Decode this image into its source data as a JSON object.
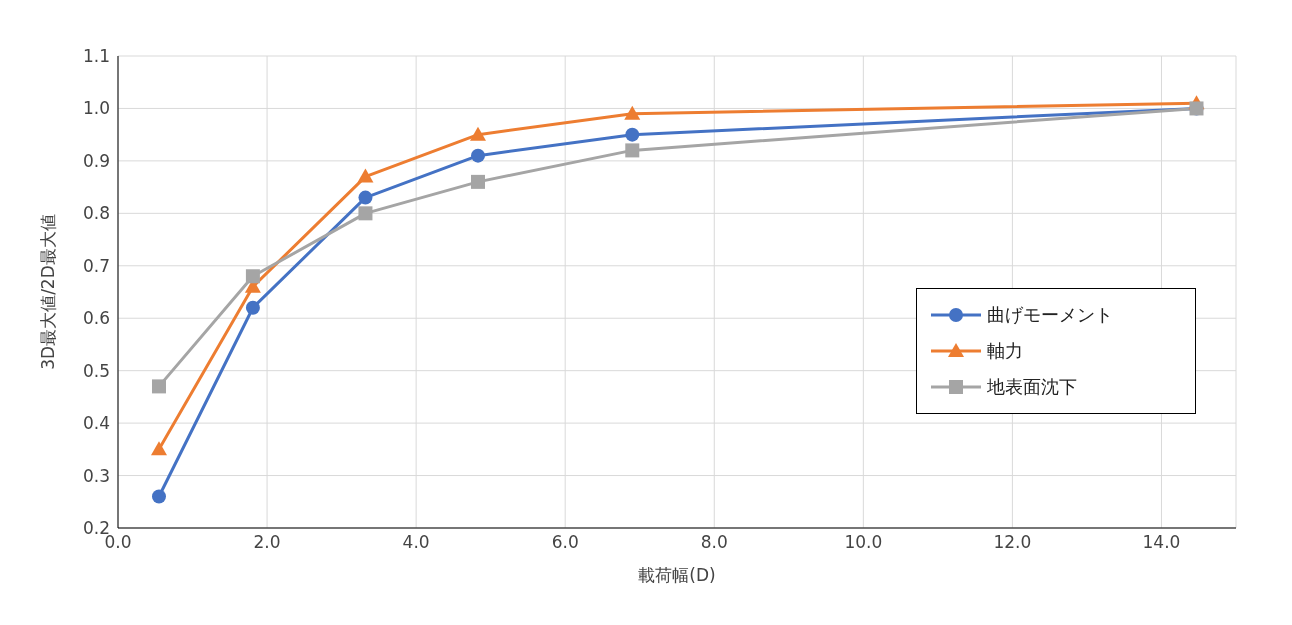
{
  "chart_data": {
    "type": "line",
    "xlabel": "載荷幅(D)",
    "ylabel": "3D最大値/2D最大値",
    "x": [
      0.55,
      1.81,
      3.32,
      4.83,
      6.9,
      14.47
    ],
    "series": [
      {
        "name": "曲げモーメント",
        "color": "#4472c4",
        "marker": "circle",
        "values": [
          0.26,
          0.62,
          0.83,
          0.91,
          0.95,
          1.0
        ]
      },
      {
        "name": "軸力",
        "color": "#ed7d31",
        "marker": "triangle",
        "values": [
          0.35,
          0.66,
          0.87,
          0.95,
          0.99,
          1.01
        ]
      },
      {
        "name": "地表面沈下",
        "color": "#a5a5a5",
        "marker": "square",
        "values": [
          0.47,
          0.68,
          0.8,
          0.86,
          0.92,
          1.0
        ]
      }
    ],
    "xlim": [
      0,
      15
    ],
    "xticks": [
      {
        "value": 0,
        "label": "0.0"
      },
      {
        "value": 2,
        "label": "2.0"
      },
      {
        "value": 4,
        "label": "4.0"
      },
      {
        "value": 6,
        "label": "6.0"
      },
      {
        "value": 8,
        "label": "8.0"
      },
      {
        "value": 10,
        "label": "10.0"
      },
      {
        "value": 12,
        "label": "12.0"
      },
      {
        "value": 14,
        "label": "14.0"
      }
    ],
    "ylim": [
      0.2,
      1.1
    ],
    "yticks": [
      {
        "value": 0.2,
        "label": "0.2"
      },
      {
        "value": 0.3,
        "label": "0.3"
      },
      {
        "value": 0.4,
        "label": "0.4"
      },
      {
        "value": 0.5,
        "label": "0.5"
      },
      {
        "value": 0.6,
        "label": "0.6"
      },
      {
        "value": 0.7,
        "label": "0.7"
      },
      {
        "value": 0.8,
        "label": "0.8"
      },
      {
        "value": 0.9,
        "label": "0.9"
      },
      {
        "value": 1.0,
        "label": "1.0"
      },
      {
        "value": 1.1,
        "label": "1.1"
      }
    ],
    "grid": true,
    "legend": "right",
    "line_style": "solid"
  }
}
